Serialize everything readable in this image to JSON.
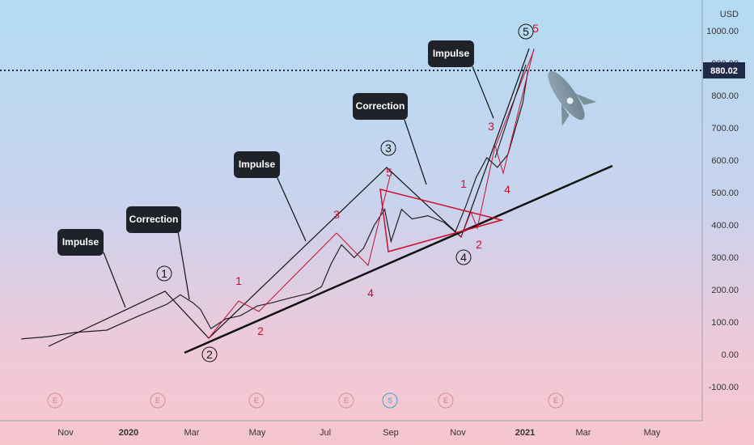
{
  "chart_data": {
    "type": "candlestick",
    "currency_label": "USD",
    "y_ticks": [
      "1000.00",
      "900.00",
      "800.00",
      "700.00",
      "600.00",
      "500.00",
      "400.00",
      "300.00",
      "200.00",
      "100.00",
      "0.00",
      "-100.00"
    ],
    "x_ticks": [
      {
        "label": "Nov",
        "year": false
      },
      {
        "label": "2020",
        "year": true
      },
      {
        "label": "Mar",
        "year": false
      },
      {
        "label": "May",
        "year": false
      },
      {
        "label": "Jul",
        "year": false
      },
      {
        "label": "Sep",
        "year": false
      },
      {
        "label": "Nov",
        "year": false
      },
      {
        "label": "2021",
        "year": true
      },
      {
        "label": "Mar",
        "year": false
      },
      {
        "label": "May",
        "year": false
      }
    ],
    "last_price": "880.02",
    "price_path": [
      [
        "2019-09-20",
        48
      ],
      [
        "2019-10-15",
        55
      ],
      [
        "2019-11-10",
        68
      ],
      [
        "2019-12-10",
        75
      ],
      [
        "2020-01-10",
        120
      ],
      [
        "2020-02-05",
        155
      ],
      [
        "2020-02-18",
        185
      ],
      [
        "2020-03-01",
        160
      ],
      [
        "2020-03-08",
        140
      ],
      [
        "2020-03-18",
        80
      ],
      [
        "2020-04-01",
        110
      ],
      [
        "2020-04-15",
        120
      ],
      [
        "2020-05-01",
        150
      ],
      [
        "2020-05-15",
        160
      ],
      [
        "2020-06-01",
        175
      ],
      [
        "2020-06-20",
        190
      ],
      [
        "2020-07-01",
        210
      ],
      [
        "2020-07-10",
        280
      ],
      [
        "2020-07-20",
        340
      ],
      [
        "2020-08-01",
        300
      ],
      [
        "2020-08-10",
        330
      ],
      [
        "2020-08-20",
        400
      ],
      [
        "2020-08-30",
        450
      ],
      [
        "2020-09-05",
        350
      ],
      [
        "2020-09-15",
        450
      ],
      [
        "2020-09-25",
        420
      ],
      [
        "2020-10-10",
        430
      ],
      [
        "2020-10-25",
        410
      ],
      [
        "2020-11-05",
        380
      ],
      [
        "2020-11-15",
        460
      ],
      [
        "2020-11-25",
        550
      ],
      [
        "2020-12-05",
        610
      ],
      [
        "2020-12-15",
        580
      ],
      [
        "2020-12-25",
        620
      ],
      [
        "2021-01-01",
        700
      ],
      [
        "2021-01-08",
        780
      ],
      [
        "2021-01-13",
        880
      ]
    ],
    "callouts": [
      "Impulse",
      "Correction",
      "Impulse",
      "Correction",
      "Impulse"
    ],
    "wave_labels_circled": [
      "1",
      "2",
      "3",
      "4",
      "5"
    ],
    "wave_labels_red": [
      "1",
      "2",
      "3",
      "4",
      "5",
      "1",
      "2",
      "3",
      "4",
      "5"
    ],
    "events": [
      "E",
      "E",
      "E",
      "E",
      "S",
      "E",
      "E"
    ]
  }
}
